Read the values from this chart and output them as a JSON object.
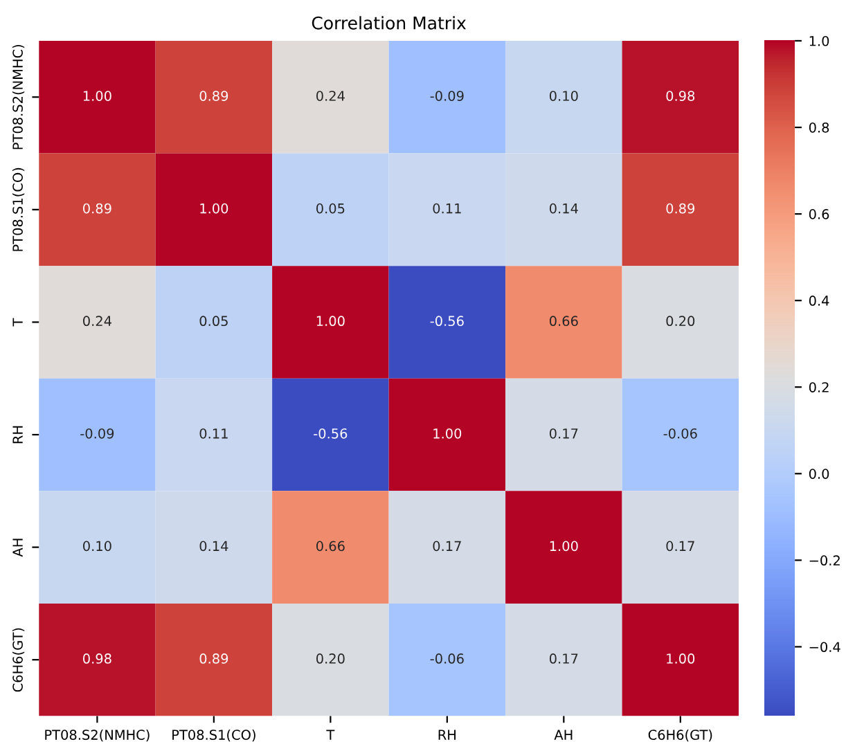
{
  "chart_data": {
    "type": "heatmap",
    "title": "Correlation Matrix",
    "categories": [
      "PT08.S2(NMHC)",
      "PT08.S1(CO)",
      "T",
      "RH",
      "AH",
      "C6H6(GT)"
    ],
    "y_categories": [
      "PT08.S2(NMHC)",
      "PT08.S1(CO)",
      "T",
      "RH",
      "AH",
      "C6H6(GT)"
    ],
    "cells": [
      [
        1.0,
        0.89,
        0.24,
        -0.09,
        0.1,
        0.98
      ],
      [
        0.89,
        1.0,
        0.05,
        0.11,
        0.14,
        0.89
      ],
      [
        0.24,
        0.05,
        1.0,
        -0.56,
        0.66,
        0.2
      ],
      [
        -0.09,
        0.11,
        -0.56,
        1.0,
        0.17,
        -0.06
      ],
      [
        0.1,
        0.14,
        0.66,
        0.17,
        1.0,
        0.17
      ],
      [
        0.98,
        0.89,
        0.2,
        -0.06,
        0.17,
        1.0
      ]
    ],
    "cell_labels": [
      [
        "1.00",
        "0.89",
        "0.24",
        "-0.09",
        "0.10",
        "0.98"
      ],
      [
        "0.89",
        "1.00",
        "0.05",
        "0.11",
        "0.14",
        "0.89"
      ],
      [
        "0.24",
        "0.05",
        "1.00",
        "-0.56",
        "0.66",
        "0.20"
      ],
      [
        "-0.09",
        "0.11",
        "-0.56",
        "1.00",
        "0.17",
        "-0.06"
      ],
      [
        "0.10",
        "0.14",
        "0.66",
        "0.17",
        "1.00",
        "0.17"
      ],
      [
        "0.98",
        "0.89",
        "0.20",
        "-0.06",
        "0.17",
        "1.00"
      ]
    ],
    "clim": [
      -0.56,
      1.0
    ],
    "cticks": [
      {
        "value": -0.4,
        "label": "−0.4"
      },
      {
        "value": -0.2,
        "label": "−0.2"
      },
      {
        "value": 0,
        "label": "0.0"
      },
      0.2,
      0.4,
      0.6,
      0.8,
      {
        "value": 1,
        "label": "1.0"
      }
    ]
  }
}
